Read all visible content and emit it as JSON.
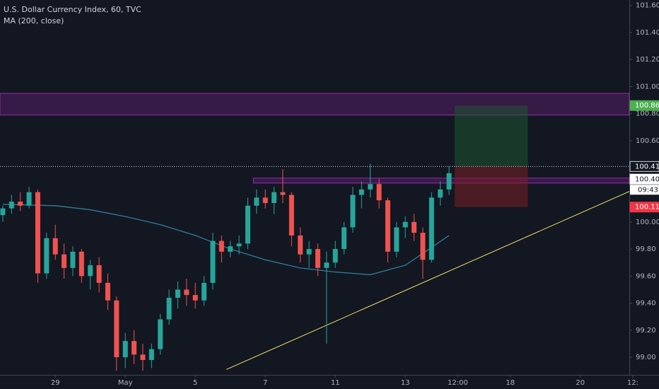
{
  "chart_data": {
    "type": "candlestick",
    "title": "U.S. Dollar Currency Index, 60, TVC",
    "subtitle": "MA (200, close)",
    "xlim": [
      -1.58,
      16.4
    ],
    "ylim": [
      98.87,
      101.64
    ],
    "xticks": [
      {
        "value": 0,
        "label": "29"
      },
      {
        "value": 2,
        "label": "May"
      },
      {
        "value": 4,
        "label": "5"
      },
      {
        "value": 6,
        "label": "7"
      },
      {
        "value": 8,
        "label": "11"
      },
      {
        "value": 10,
        "label": "13"
      },
      {
        "value": 11.5,
        "label": "12:00"
      },
      {
        "value": 13,
        "label": "18"
      },
      {
        "value": 15,
        "label": "20"
      },
      {
        "value": 16.5,
        "label": "12:"
      }
    ],
    "yticks": [
      {
        "value": 99,
        "label": "99.00"
      },
      {
        "value": 99.2,
        "label": "99.20"
      },
      {
        "value": 99.4,
        "label": "99.40"
      },
      {
        "value": 99.6,
        "label": "99.60"
      },
      {
        "value": 99.8,
        "label": "99.80"
      },
      {
        "value": 100,
        "label": "100.00"
      },
      {
        "value": 100.6,
        "label": "100.60"
      },
      {
        "value": 100.8,
        "label": "100.80"
      },
      {
        "value": 101,
        "label": "101.00"
      },
      {
        "value": 101.2,
        "label": "101.20"
      },
      {
        "value": 101.4,
        "label": "101.40"
      },
      {
        "value": 101.6,
        "label": "101.60"
      }
    ],
    "up_color": "#26a69a",
    "down_color": "#ef5350",
    "candles": {
      "x": [
        -1.5,
        -1.25,
        -1,
        -0.75,
        -0.5,
        -0.25,
        0,
        0.25,
        0.5,
        0.75,
        1,
        1.25,
        1.5,
        1.75,
        2,
        2.25,
        2.5,
        2.75,
        3,
        3.25,
        3.5,
        3.75,
        4,
        4.25,
        4.5,
        4.75,
        5,
        5.25,
        5.5,
        5.75,
        6,
        6.25,
        6.5,
        6.75,
        7,
        7.25,
        7.5,
        7.75,
        8,
        8.25,
        8.5,
        8.75,
        9,
        9.25,
        9.5,
        9.75,
        10,
        10.25,
        10.5,
        10.75,
        11,
        11.25
      ],
      "open": [
        100.05,
        100.1,
        100.15,
        100.12,
        100.22,
        99.62,
        99.88,
        99.76,
        99.66,
        99.78,
        99.6,
        99.68,
        99.55,
        99.42,
        99,
        99.12,
        99.02,
        98.98,
        99.06,
        99.28,
        99.44,
        99.5,
        99.46,
        99.42,
        99.55,
        99.86,
        99.78,
        99.82,
        99.84,
        100.12,
        100.18,
        100.14,
        100.22,
        100.2,
        99.9,
        99.76,
        99.8,
        99.66,
        99.7,
        99.8,
        99.96,
        100.2,
        100.24,
        100.28,
        100.16,
        99.78,
        99.96,
        100,
        99.92,
        99.72,
        100.18,
        100.24
      ],
      "high": [
        100.12,
        100.2,
        100.22,
        100.26,
        100.24,
        99.92,
        99.98,
        99.84,
        99.82,
        99.8,
        99.72,
        99.74,
        99.62,
        99.45,
        99.18,
        99.2,
        99.1,
        99.1,
        99.32,
        99.5,
        99.56,
        99.58,
        99.55,
        99.6,
        99.92,
        99.9,
        99.86,
        99.9,
        100.18,
        100.24,
        100.24,
        100.26,
        100.39,
        100.22,
        99.96,
        99.86,
        99.84,
        99.78,
        99.86,
        100,
        100.26,
        100.3,
        100.43,
        100.32,
        100.18,
        100,
        100.04,
        100.06,
        99.96,
        100.22,
        100.3,
        100.41
      ],
      "low": [
        100,
        100.06,
        100.08,
        100.1,
        99.55,
        99.58,
        99.72,
        99.58,
        99.6,
        99.55,
        99.5,
        99.48,
        99.35,
        98.9,
        98.92,
        98.95,
        98.9,
        98.92,
        99.02,
        99.24,
        99.36,
        99.38,
        99.36,
        99.38,
        99.5,
        99.7,
        99.74,
        99.76,
        99.8,
        100.06,
        100.1,
        100.06,
        100.14,
        99.82,
        99.7,
        99.66,
        99.6,
        99.1,
        99.66,
        99.76,
        99.92,
        100.1,
        100.18,
        100.1,
        99.7,
        99.74,
        99.88,
        99.86,
        99.58,
        99.7,
        100.12,
        100.2
      ],
      "close": [
        100.1,
        100.15,
        100.12,
        100.22,
        99.62,
        99.88,
        99.76,
        99.66,
        99.78,
        99.6,
        99.68,
        99.55,
        99.42,
        99,
        99.12,
        99.02,
        98.98,
        99.06,
        99.28,
        99.44,
        99.5,
        99.46,
        99.42,
        99.55,
        99.86,
        99.78,
        99.82,
        99.84,
        100.12,
        100.18,
        100.14,
        100.22,
        100.2,
        99.9,
        99.76,
        99.8,
        99.66,
        99.7,
        99.8,
        99.96,
        100.2,
        100.24,
        100.28,
        100.16,
        99.78,
        99.96,
        100,
        99.92,
        99.72,
        100.18,
        100.24,
        100.36
      ]
    },
    "ma": {
      "color": "#2e7d9a",
      "x": [
        -1.5,
        0,
        1,
        2,
        3,
        4,
        5,
        6,
        7,
        8,
        9,
        10,
        11.25
      ],
      "values": [
        100.13,
        100.12,
        100.09,
        100.04,
        99.98,
        99.9,
        99.8,
        99.72,
        99.66,
        99.63,
        99.61,
        99.68,
        99.9
      ]
    },
    "zones": [
      {
        "x": [
          -1.58,
          16.4
        ],
        "y": [
          100.79,
          100.95
        ],
        "color": "#9c27b0"
      },
      {
        "x": [
          5.66,
          16.4
        ],
        "y": [
          100.287,
          100.324
        ],
        "color": "#9c27b0"
      }
    ],
    "position": {
      "x": [
        11.41,
        13.5
      ],
      "target": 100.86,
      "entry": 100.41,
      "stop": 100.11
    },
    "trend_line": {
      "x": [
        4.89,
        16.53
      ],
      "y": [
        98.91,
        100.24
      ],
      "color": "#e8e36b"
    },
    "current_price": 100.41,
    "price_labels": [
      {
        "value": 100.86,
        "label": "100.86",
        "color": "#4caf50"
      },
      {
        "value": 100.41,
        "label": "100.41",
        "color": "#131722"
      },
      {
        "value": 100.4,
        "label": "100.40",
        "color": "#ffffff"
      },
      {
        "value": 100.11,
        "label": "100.11",
        "color": "#f23645"
      }
    ],
    "countdown": "09:43"
  }
}
